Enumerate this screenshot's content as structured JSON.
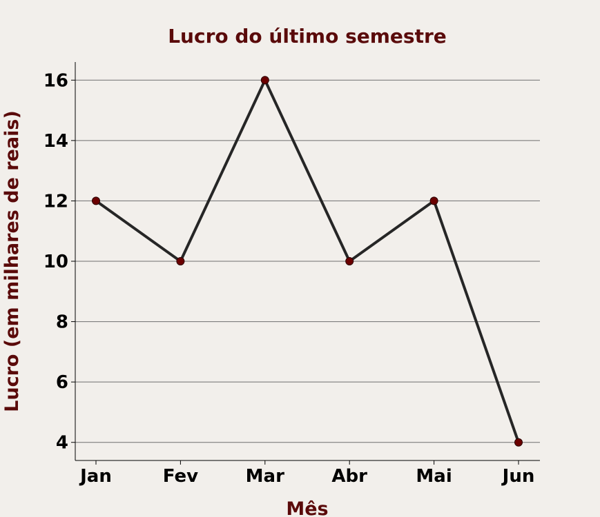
{
  "chart_data": {
    "type": "line",
    "title": "Lucro do último semestre",
    "xlabel": "Mês",
    "ylabel": "Lucro (em milhares de reais)",
    "categories": [
      "Jan",
      "Fev",
      "Mar",
      "Abr",
      "Mai",
      "Jun"
    ],
    "series": [
      {
        "values": [
          12,
          10,
          16,
          10,
          12,
          4
        ]
      }
    ],
    "ylim": [
      3.4,
      16.6
    ],
    "yticks": [
      4,
      6,
      8,
      10,
      12,
      14,
      16
    ],
    "grid": "horizontal",
    "legend": "none"
  },
  "colors": {
    "background": "#f2efeb",
    "title": "#5a0a0a",
    "line": "#262626",
    "marker": "#6b0000",
    "grid": "#6e6e6e",
    "axis": "#000000"
  }
}
